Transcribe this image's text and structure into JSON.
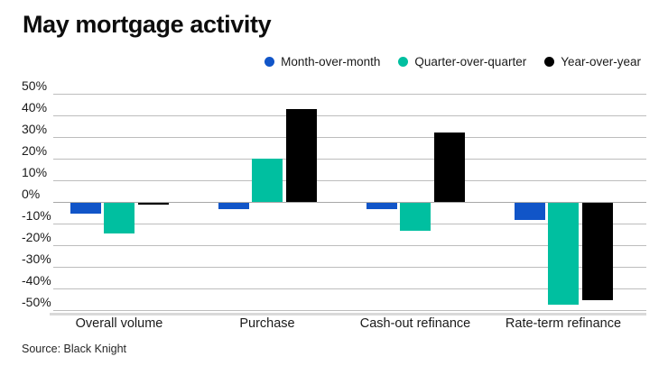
{
  "title": "May mortgage activity",
  "source": "Source: Black Knight",
  "legend": {
    "items": [
      {
        "label": "Month-over-month",
        "icon": "circle-marker-icon",
        "color": "#1155c8"
      },
      {
        "label": "Quarter-over-quarter",
        "icon": "circle-marker-icon",
        "color": "#00bfa0"
      },
      {
        "label": "Year-over-year",
        "icon": "circle-marker-icon",
        "color": "#000000"
      }
    ]
  },
  "chart_data": {
    "type": "bar",
    "title": "May mortgage activity",
    "categories": [
      "Overall volume",
      "Purchase",
      "Cash-out refinance",
      "Rate-term refinance"
    ],
    "series": [
      {
        "name": "Month-over-month",
        "color": "#1155c8",
        "values": [
          -5,
          -3,
          -3,
          -8
        ]
      },
      {
        "name": "Quarter-over-quarter",
        "color": "#00bfa0",
        "values": [
          -14,
          20,
          -13,
          -47
        ]
      },
      {
        "name": "Year-over-year",
        "color": "#000000",
        "values": [
          -1,
          43,
          32,
          -45
        ]
      }
    ],
    "xlabel": "",
    "ylabel": "",
    "ylim": [
      -50,
      50
    ],
    "ytick_step": 10,
    "ytick_suffix": "%",
    "grid": true,
    "legend_position": "top-right",
    "source": "Source: Black Knight"
  }
}
